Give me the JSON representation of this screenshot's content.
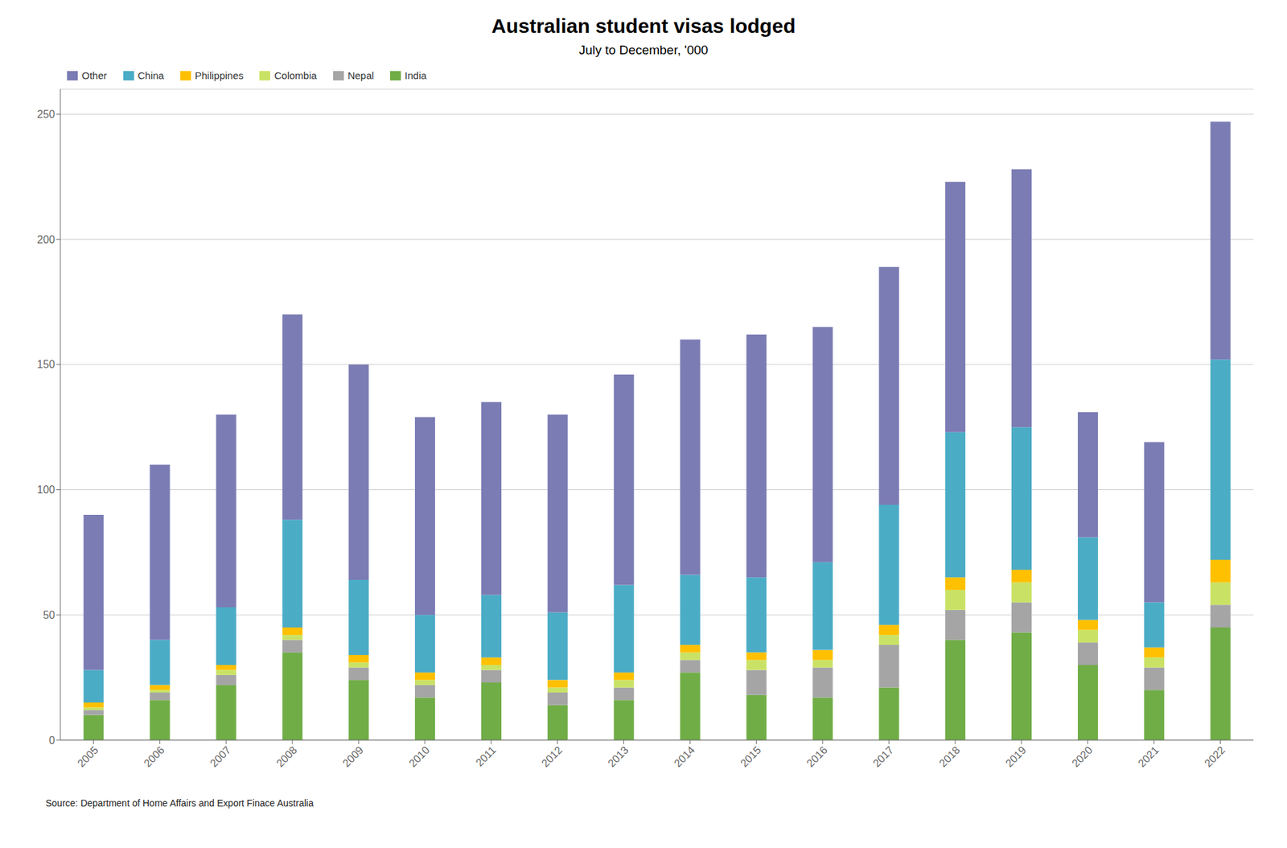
{
  "chart_data": {
    "type": "bar",
    "title": "Australian student visas lodged",
    "subtitle": "July to December, '000",
    "annotations": [
      "Source: Department of Home Affairs and Export Finace  Australia"
    ],
    "categories": [
      "2005",
      "2006",
      "2007",
      "2008",
      "2009",
      "2010",
      "2011",
      "2012",
      "2013",
      "2014",
      "2015",
      "2016",
      "2017",
      "2018",
      "2019",
      "2020",
      "2021",
      "2022"
    ],
    "series": [
      {
        "name": "India",
        "color": "#70AD47",
        "values": [
          10,
          16,
          22,
          35,
          24,
          17,
          23,
          14,
          16,
          27,
          18,
          17,
          21,
          40,
          43,
          30,
          20,
          45
        ]
      },
      {
        "name": "Nepal",
        "color": "#A5A5A5",
        "values": [
          2,
          3,
          4,
          5,
          5,
          5,
          5,
          5,
          5,
          5,
          10,
          12,
          17,
          12,
          12,
          9,
          9,
          9
        ]
      },
      {
        "name": "Colombia",
        "color": "#C9E265",
        "values": [
          1,
          1,
          2,
          2,
          2,
          2,
          2,
          2,
          3,
          3,
          4,
          3,
          4,
          8,
          8,
          5,
          4,
          9
        ]
      },
      {
        "name": "Philippines",
        "color": "#FFC000",
        "values": [
          2,
          2,
          2,
          3,
          3,
          3,
          3,
          3,
          3,
          3,
          3,
          4,
          4,
          5,
          5,
          4,
          4,
          9
        ]
      },
      {
        "name": "China",
        "color": "#4BACC6",
        "values": [
          13,
          18,
          23,
          43,
          30,
          23,
          25,
          27,
          35,
          28,
          30,
          35,
          48,
          58,
          57,
          33,
          18,
          80
        ]
      },
      {
        "name": "Other",
        "color": "#7B7CB4",
        "values": [
          62,
          70,
          77,
          82,
          86,
          79,
          77,
          79,
          84,
          94,
          97,
          94,
          95,
          100,
          103,
          50,
          64,
          95
        ]
      }
    ],
    "stacked": true,
    "ylim": [
      0,
      260
    ],
    "yticks": [
      0,
      50,
      100,
      150,
      200,
      250
    ],
    "grid": true,
    "legend": "upper left"
  }
}
